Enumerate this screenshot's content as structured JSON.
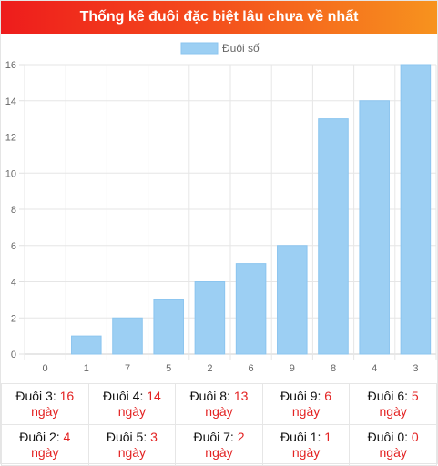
{
  "header": {
    "title": "Thống kê đuôi đặc biệt lâu chưa về nhất"
  },
  "chart_data": {
    "type": "bar",
    "title": "",
    "xlabel": "",
    "ylabel": "",
    "categories": [
      "0",
      "1",
      "7",
      "5",
      "2",
      "6",
      "9",
      "8",
      "4",
      "3"
    ],
    "series": [
      {
        "name": "Đuôi số",
        "values": [
          0,
          1,
          2,
          3,
          4,
          5,
          6,
          13,
          14,
          16
        ],
        "color": "#9ccff3",
        "border": "#8bc5ef"
      }
    ],
    "ylim": [
      0,
      16
    ],
    "yticks": [
      "0",
      "2",
      "4",
      "6",
      "8",
      "10",
      "12",
      "14",
      "16"
    ],
    "grid": true,
    "legend": "top-center"
  },
  "stats": {
    "rows": [
      [
        {
          "label": "Đuôi 3:",
          "value": "16",
          "unit": "ngày"
        },
        {
          "label": "Đuôi 4:",
          "value": "14",
          "unit": "ngày"
        },
        {
          "label": "Đuôi 8:",
          "value": "13",
          "unit": "ngày"
        },
        {
          "label": "Đuôi 9:",
          "value": "6",
          "unit": "ngày"
        },
        {
          "label": "Đuôi 6:",
          "value": "5",
          "unit": "ngày"
        }
      ],
      [
        {
          "label": "Đuôi 2:",
          "value": "4",
          "unit": "ngày"
        },
        {
          "label": "Đuôi 5:",
          "value": "3",
          "unit": "ngày"
        },
        {
          "label": "Đuôi 7:",
          "value": "2",
          "unit": "ngày"
        },
        {
          "label": "Đuôi 1:",
          "value": "1",
          "unit": "ngày"
        },
        {
          "label": "Đuôi 0:",
          "value": "0",
          "unit": "ngày"
        }
      ]
    ]
  }
}
